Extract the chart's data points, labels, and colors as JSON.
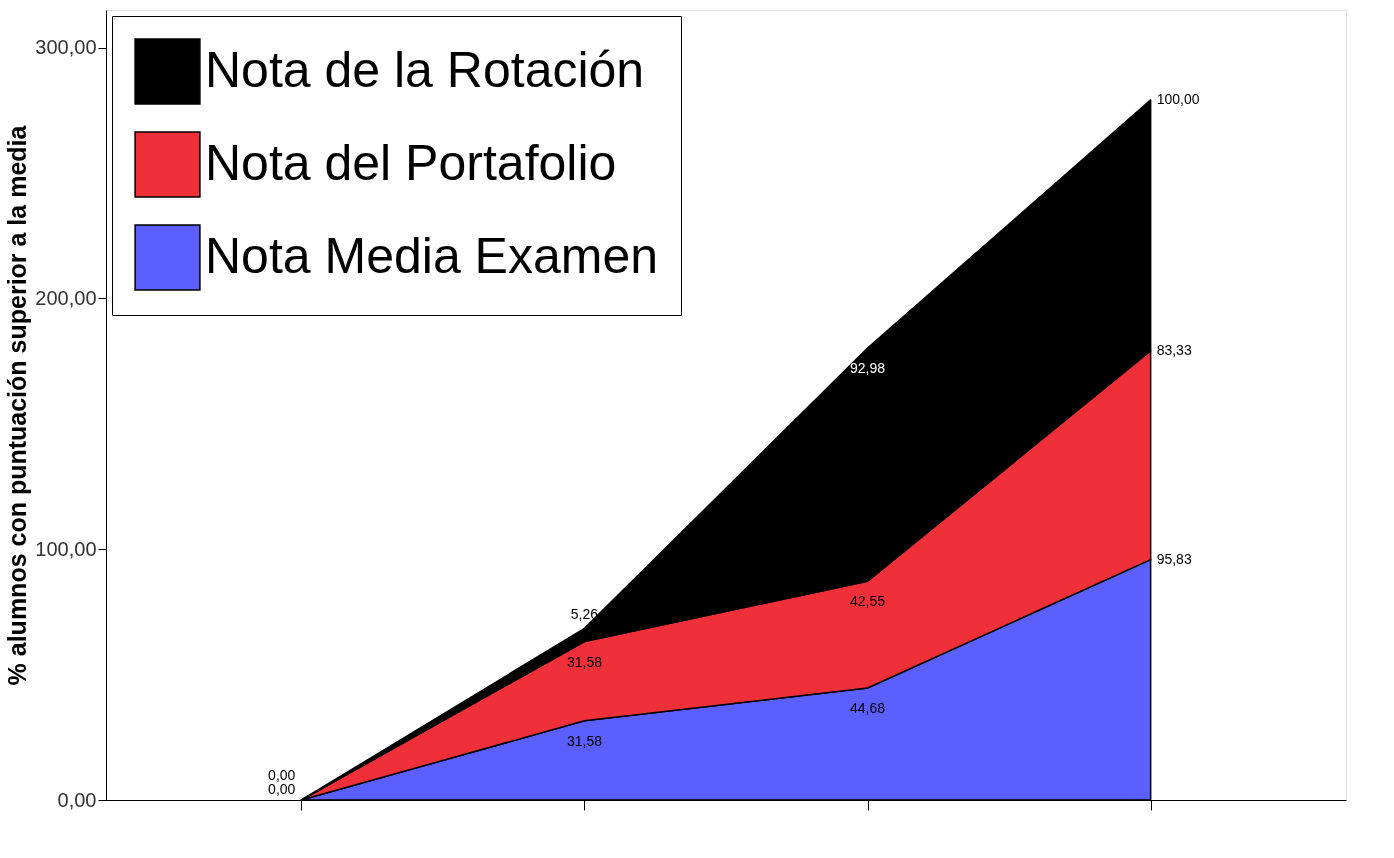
{
  "chart_data": {
    "type": "area",
    "stacked": true,
    "ylabel": "% alumnos con puntuación superior a la media",
    "categories": [
      null,
      null,
      null,
      null
    ],
    "series": [
      {
        "name": "Nota Media Examen",
        "color": "#5b5ffe",
        "values": [
          0,
          31.58,
          44.68,
          95.83
        ],
        "value_labels": [
          "0,00",
          "31,58",
          "44,68",
          "95,83"
        ]
      },
      {
        "name": "Nota del Portafolio",
        "color": "#ef3038",
        "values": [
          0,
          31.58,
          42.55,
          83.33
        ],
        "value_labels": [
          "0,00",
          "31,58",
          "42,55",
          "83,33"
        ]
      },
      {
        "name": "Nota de la Rotación",
        "color": "#000000",
        "values": [
          0,
          5.26,
          92.98,
          100
        ],
        "value_labels": [
          null,
          "5,26",
          "92,98",
          "100,00"
        ]
      }
    ],
    "ylim": [
      0,
      315
    ],
    "yticks": [
      {
        "value": 0,
        "label": "0,00"
      },
      {
        "value": 100,
        "label": "100,00"
      },
      {
        "value": 200,
        "label": "200,00"
      },
      {
        "value": 300,
        "label": "300,00"
      }
    ],
    "grid": false,
    "legend": "top left"
  }
}
